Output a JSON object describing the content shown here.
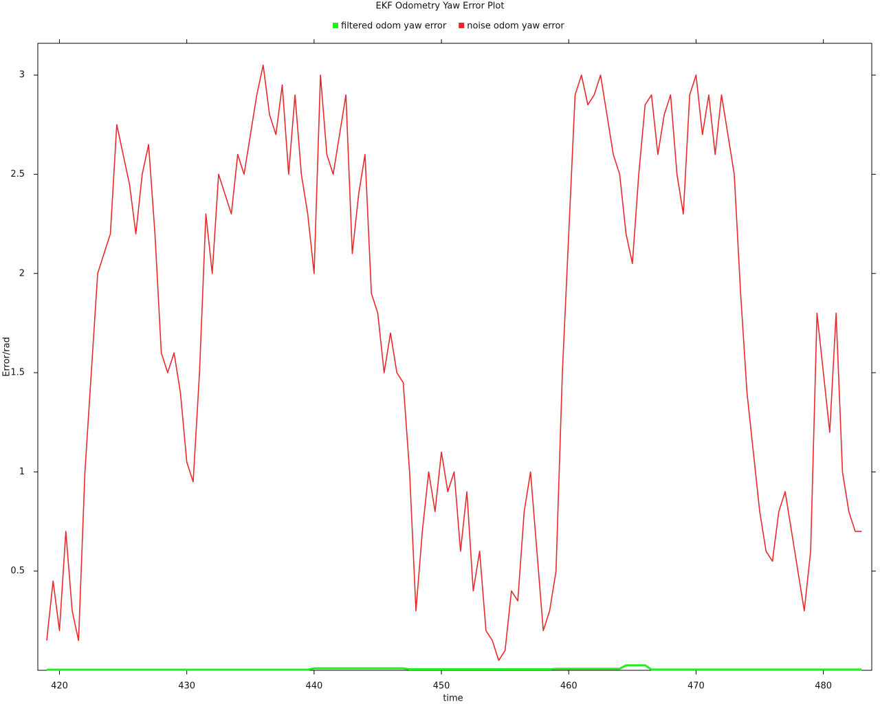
{
  "chart_data": {
    "type": "line",
    "title": "EKF Odometry Yaw Error Plot",
    "x_label": "time",
    "y_label": "Error/rad",
    "xlim": [
      418.3,
      483.8
    ],
    "ylim": [
      0,
      3.16
    ],
    "xticks": [
      420,
      430,
      440,
      450,
      460,
      470,
      480
    ],
    "yticks": [
      0.5,
      1,
      1.5,
      2,
      2.5,
      3
    ],
    "legend": "top",
    "x": [
      419,
      419.5,
      420,
      420.5,
      421,
      421.5,
      422,
      422.5,
      423,
      423.5,
      424,
      424.5,
      425,
      425.5,
      426,
      426.5,
      427,
      427.5,
      428,
      428.5,
      429,
      429.5,
      430,
      430.5,
      431,
      431.5,
      432,
      432.5,
      433,
      433.5,
      434,
      434.5,
      435,
      435.5,
      436,
      436.5,
      437,
      437.5,
      438,
      438.5,
      439,
      439.5,
      440,
      440.5,
      441,
      441.5,
      442,
      442.5,
      443,
      443.5,
      444,
      444.5,
      445,
      445.5,
      446,
      446.5,
      447,
      447.5,
      448,
      448.5,
      449,
      449.5,
      450,
      450.5,
      451,
      451.5,
      452,
      452.5,
      453,
      453.5,
      454,
      454.5,
      455,
      455.5,
      456,
      456.5,
      457,
      457.5,
      458,
      458.5,
      459,
      459.5,
      460,
      460.5,
      461,
      461.5,
      462,
      462.5,
      463,
      463.5,
      464,
      464.5,
      465,
      465.5,
      466,
      466.5,
      467,
      467.5,
      468,
      468.5,
      469,
      469.5,
      470,
      470.5,
      471,
      471.5,
      472,
      472.5,
      473,
      473.5,
      474,
      474.5,
      475,
      475.5,
      476,
      476.5,
      477,
      477.5,
      478,
      478.5,
      479,
      479.5,
      480,
      480.5,
      481,
      481.5,
      482,
      482.5,
      483
    ],
    "series": [
      {
        "name": "filtered odom yaw error",
        "color": "#22ee22",
        "values": [
          0.003,
          0.003,
          0.003,
          0.003,
          0.003,
          0.003,
          0.003,
          0.003,
          0.003,
          0.003,
          0.003,
          0.003,
          0.003,
          0.003,
          0.003,
          0.003,
          0.003,
          0.003,
          0.003,
          0.003,
          0.003,
          0.003,
          0.003,
          0.003,
          0.003,
          0.003,
          0.003,
          0.003,
          0.003,
          0.003,
          0.003,
          0.003,
          0.003,
          0.003,
          0.003,
          0.003,
          0.003,
          0.003,
          0.003,
          0.003,
          0.003,
          0.003,
          0.01,
          0.01,
          0.01,
          0.01,
          0.01,
          0.01,
          0.01,
          0.01,
          0.01,
          0.01,
          0.01,
          0.01,
          0.01,
          0.01,
          0.01,
          0.005,
          0.005,
          0.005,
          0.005,
          0.005,
          0.005,
          0.005,
          0.005,
          0.005,
          0.005,
          0.005,
          0.005,
          0.005,
          0.005,
          0.005,
          0.005,
          0.005,
          0.005,
          0.005,
          0.005,
          0.005,
          0.005,
          0.005,
          0.008,
          0.008,
          0.008,
          0.008,
          0.008,
          0.008,
          0.008,
          0.008,
          0.008,
          0.008,
          0.008,
          0.025,
          0.025,
          0.025,
          0.025,
          0.004,
          0.004,
          0.004,
          0.004,
          0.004,
          0.004,
          0.004,
          0.004,
          0.004,
          0.004,
          0.004,
          0.004,
          0.004,
          0.004,
          0.004,
          0.004,
          0.004,
          0.004,
          0.004,
          0.004,
          0.004,
          0.004,
          0.004,
          0.004,
          0.004,
          0.004,
          0.004,
          0.004,
          0.004,
          0.004,
          0.004,
          0.004,
          0.004,
          0.004
        ]
      },
      {
        "name": "noise odom yaw error",
        "color": "#e8282a",
        "values": [
          0.15,
          0.45,
          0.2,
          0.7,
          0.3,
          0.15,
          1.0,
          1.5,
          2.0,
          2.1,
          2.2,
          2.75,
          2.6,
          2.45,
          2.2,
          2.5,
          2.65,
          2.2,
          1.6,
          1.5,
          1.6,
          1.4,
          1.05,
          0.95,
          1.5,
          2.3,
          2.0,
          2.5,
          2.4,
          2.3,
          2.6,
          2.5,
          2.7,
          2.9,
          3.05,
          2.8,
          2.7,
          2.95,
          2.5,
          2.9,
          2.5,
          2.3,
          2.0,
          3.0,
          2.6,
          2.5,
          2.7,
          2.9,
          2.1,
          2.4,
          2.6,
          1.9,
          1.8,
          1.5,
          1.7,
          1.5,
          1.45,
          1.0,
          0.3,
          0.7,
          1.0,
          0.8,
          1.1,
          0.9,
          1.0,
          0.6,
          0.9,
          0.4,
          0.6,
          0.2,
          0.15,
          0.05,
          0.1,
          0.4,
          0.35,
          0.8,
          1.0,
          0.6,
          0.2,
          0.3,
          0.5,
          1.5,
          2.2,
          2.9,
          3.0,
          2.85,
          2.9,
          3.0,
          2.8,
          2.6,
          2.5,
          2.2,
          2.05,
          2.5,
          2.85,
          2.9,
          2.6,
          2.8,
          2.9,
          2.5,
          2.3,
          2.9,
          3.0,
          2.7,
          2.9,
          2.6,
          2.9,
          2.7,
          2.5,
          1.9,
          1.4,
          1.1,
          0.8,
          0.6,
          0.55,
          0.8,
          0.9,
          0.7,
          0.5,
          0.3,
          0.6,
          1.8,
          1.5,
          1.2,
          1.8,
          1.0,
          0.8,
          0.7,
          0.7
        ]
      }
    ]
  }
}
